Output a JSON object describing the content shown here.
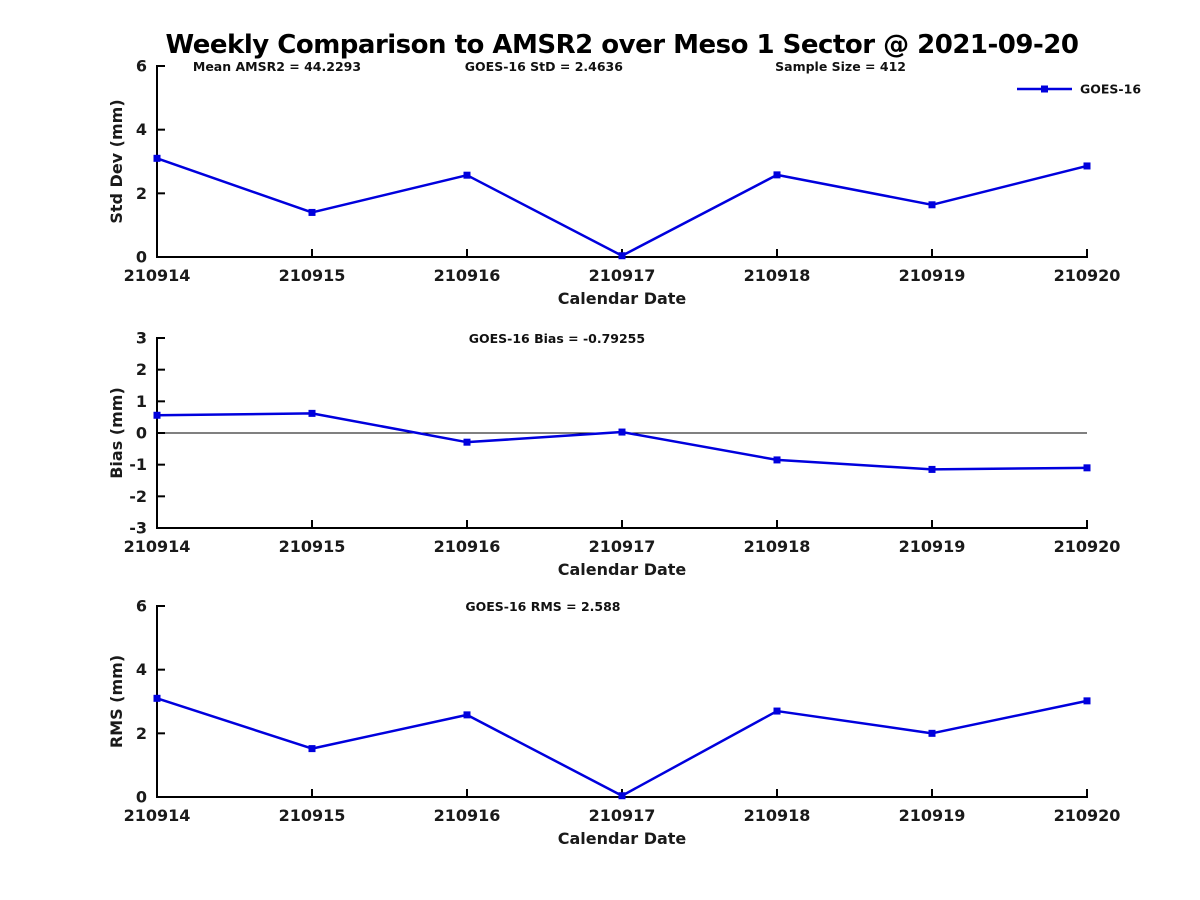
{
  "title": "Weekly Comparison to AMSR2 over Meso 1 Sector @ 2021-09-20",
  "colors": {
    "series": "#0000dd",
    "axis": "#000000",
    "tick_text": "#1a1a1a",
    "annotation_text": "#111111"
  },
  "legend": {
    "label": "GOES-16"
  },
  "chart_data": [
    {
      "type": "line",
      "ylabel": "Std Dev (mm)",
      "xlabel": "Calendar Date",
      "ylim": [
        0,
        6
      ],
      "yticks": [
        0,
        2,
        4,
        6
      ],
      "categories": [
        "210914",
        "210915",
        "210916",
        "210917",
        "210918",
        "210919",
        "210920"
      ],
      "series": [
        {
          "name": "GOES-16",
          "values": [
            3.1,
            1.4,
            2.57,
            0.04,
            2.58,
            1.64,
            2.86
          ]
        }
      ],
      "annotations": [
        {
          "text": "Mean AMSR2 = 44.2293"
        },
        {
          "text": "GOES-16 StD = 2.4636"
        },
        {
          "text": "Sample Size = 412"
        }
      ],
      "zero_line": false,
      "legend_visible": true
    },
    {
      "type": "line",
      "ylabel": "Bias (mm)",
      "xlabel": "Calendar Date",
      "ylim": [
        -3,
        3
      ],
      "yticks": [
        -3,
        -2,
        -1,
        0,
        1,
        2,
        3
      ],
      "categories": [
        "210914",
        "210915",
        "210916",
        "210917",
        "210918",
        "210919",
        "210920"
      ],
      "series": [
        {
          "name": "GOES-16",
          "values": [
            0.56,
            0.62,
            -0.29,
            0.03,
            -0.85,
            -1.15,
            -1.1
          ]
        }
      ],
      "annotations": [
        {
          "text": "GOES-16 Bias  = -0.79255"
        }
      ],
      "zero_line": true,
      "legend_visible": false
    },
    {
      "type": "line",
      "ylabel": "RMS (mm)",
      "xlabel": "Calendar Date",
      "ylim": [
        0,
        6
      ],
      "yticks": [
        0,
        2,
        4,
        6
      ],
      "categories": [
        "210914",
        "210915",
        "210916",
        "210917",
        "210918",
        "210919",
        "210920"
      ],
      "series": [
        {
          "name": "GOES-16",
          "values": [
            3.1,
            1.52,
            2.58,
            0.04,
            2.7,
            2.0,
            3.02
          ]
        }
      ],
      "annotations": [
        {
          "text": "GOES-16 RMS = 2.588"
        }
      ],
      "zero_line": false,
      "legend_visible": false
    }
  ]
}
